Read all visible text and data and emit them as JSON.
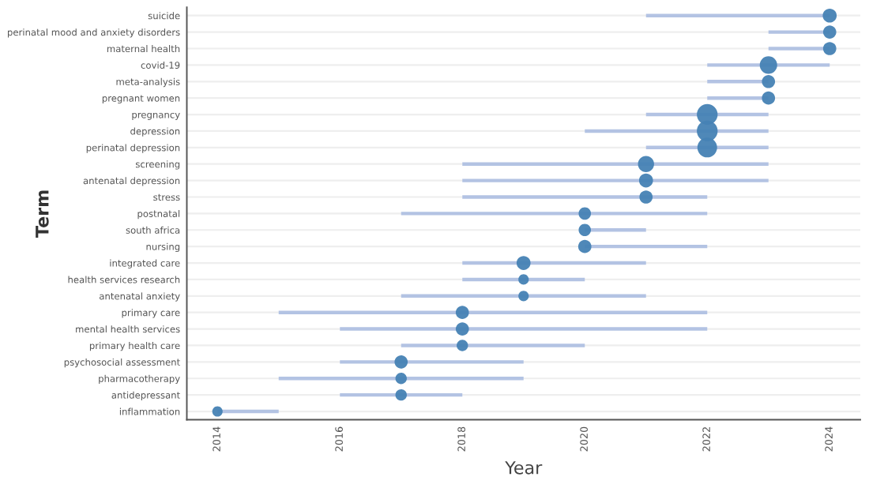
{
  "chart_data": {
    "type": "bubble",
    "orientation": "horizontal",
    "xlabel": "Year",
    "ylabel": "Term",
    "color": "#4682b4",
    "categories": [
      "suicide",
      "perinatal mood and anxiety disorders",
      "maternal health",
      "covid-19",
      "meta-analysis",
      "pregnant women",
      "pregnancy",
      "depression",
      "perinatal depression",
      "screening",
      "antenatal depression",
      "stress",
      "postnatal",
      "south africa",
      "nursing",
      "integrated care",
      "health services research",
      "antenatal anxiety",
      "primary care",
      "mental health services",
      "primary health care",
      "psychosocial assessment",
      "pharmacotherapy",
      "antidepressant",
      "inflammation"
    ],
    "values": [
      2024,
      2024,
      2024,
      2023,
      2023,
      2023,
      2022,
      2022,
      2022,
      2021,
      2021,
      2021,
      2020,
      2020,
      2020,
      2019,
      2019,
      2019,
      2018,
      2018,
      2018,
      2017,
      2017,
      2017,
      2014
    ],
    "errors": [
      [
        2021,
        2024
      ],
      [
        2023,
        2024
      ],
      [
        2023,
        2024
      ],
      [
        2022,
        2024
      ],
      [
        2022,
        2023
      ],
      [
        2022,
        2023
      ],
      [
        2021,
        2023
      ],
      [
        2020,
        2023
      ],
      [
        2021,
        2023
      ],
      [
        2018,
        2023
      ],
      [
        2018,
        2023
      ],
      [
        2018,
        2022
      ],
      [
        2017,
        2022
      ],
      [
        2020,
        2021
      ],
      [
        2020,
        2022
      ],
      [
        2018,
        2021
      ],
      [
        2018,
        2020
      ],
      [
        2017,
        2021
      ],
      [
        2015,
        2022
      ],
      [
        2016,
        2022
      ],
      [
        2017,
        2020
      ],
      [
        2016,
        2019
      ],
      [
        2015,
        2019
      ],
      [
        2016,
        2018
      ],
      [
        2014,
        2015
      ]
    ],
    "sizes": [
      0.45,
      0.4,
      0.4,
      0.7,
      0.4,
      0.4,
      1,
      1,
      0.9,
      0.6,
      0.45,
      0.4,
      0.35,
      0.35,
      0.4,
      0.45,
      0.25,
      0.25,
      0.4,
      0.4,
      0.3,
      0.4,
      0.3,
      0.3,
      0.25
    ],
    "xlim": [
      2013.5,
      2024.5
    ],
    "xticks": [
      2014,
      2016,
      2018,
      2020,
      2022,
      2024
    ],
    "grid": "y"
  }
}
